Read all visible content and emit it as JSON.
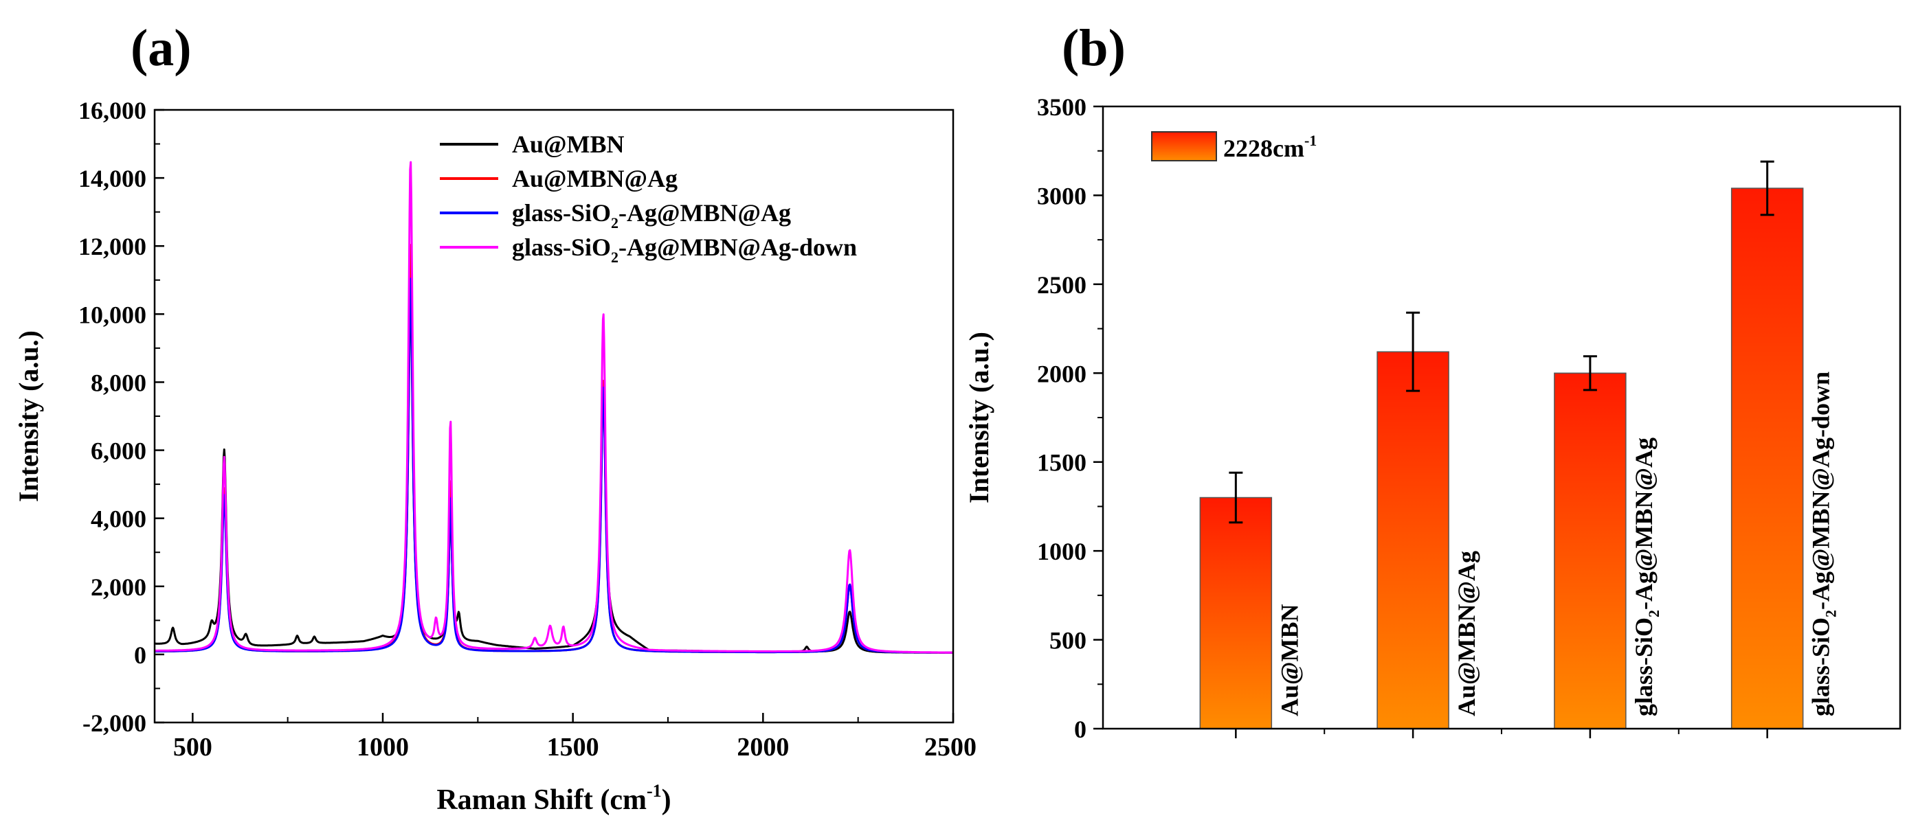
{
  "panels": {
    "a_label": "(a)",
    "b_label": "(b)"
  },
  "chart_data": [
    {
      "id": "a",
      "type": "line",
      "title": "",
      "xlabel": "Raman Shift (cm",
      "xlabel_sup": "-1",
      "xlabel_suffix": ")",
      "ylabel": "Intensity (a.u.)",
      "xlim": [
        400,
        2500
      ],
      "ylim": [
        -2000,
        16000
      ],
      "xticks": [
        500,
        1000,
        1500,
        2000,
        2500
      ],
      "yticks": [
        -2000,
        0,
        2000,
        4000,
        6000,
        8000,
        10000,
        12000,
        14000,
        16000
      ],
      "ytick_labels": [
        "-2,000",
        "0",
        "2,000",
        "4,000",
        "6,000",
        "8,000",
        "10,000",
        "12,000",
        "14,000",
        "16,000"
      ],
      "legend_position": "top-right",
      "series": [
        {
          "name": "Au@MBN",
          "color": "#000000",
          "baseline": [
            [
              400,
              300
            ],
            [
              470,
              250
            ],
            [
              550,
              350
            ],
            [
              650,
              200
            ],
            [
              800,
              300
            ],
            [
              950,
              350
            ],
            [
              1000,
              450
            ],
            [
              1040,
              200
            ],
            [
              1100,
              250
            ],
            [
              1250,
              350
            ],
            [
              1300,
              250
            ],
            [
              1400,
              150
            ],
            [
              1500,
              200
            ],
            [
              1550,
              450
            ],
            [
              1600,
              600
            ],
            [
              1650,
              450
            ],
            [
              1700,
              100
            ],
            [
              1800,
              100
            ],
            [
              1900,
              80
            ],
            [
              2000,
              80
            ],
            [
              2200,
              60
            ],
            [
              2300,
              50
            ],
            [
              2500,
              50
            ]
          ],
          "peaks": [
            [
              448,
              500,
              6
            ],
            [
              550,
              400,
              6
            ],
            [
              583,
              5700,
              7
            ],
            [
              640,
              300,
              6
            ],
            [
              775,
              250,
              5
            ],
            [
              820,
              200,
              5
            ],
            [
              1073,
              10500,
              7
            ],
            [
              1178,
              4000,
              5
            ],
            [
              1200,
              700,
              5
            ],
            [
              1580,
              7400,
              7
            ],
            [
              2115,
              150,
              5
            ],
            [
              2228,
              1200,
              10
            ]
          ]
        },
        {
          "name": "Au@MBN@Ag",
          "color": "#ff0000",
          "baseline": [
            [
              400,
              80
            ],
            [
              900,
              80
            ],
            [
              1500,
              80
            ],
            [
              2000,
              60
            ],
            [
              2500,
              50
            ]
          ],
          "peaks": [
            [
              583,
              4800,
              7
            ],
            [
              1073,
              12000,
              7
            ],
            [
              1178,
              5000,
              5
            ],
            [
              1580,
              8000,
              7
            ],
            [
              2228,
              2000,
              10
            ]
          ]
        },
        {
          "name": "glass-SiO2-Ag@MBN@Ag",
          "color": "#0000ff",
          "name_base": "glass-SiO",
          "name_sub": "2",
          "name_rest": "-Ag@MBN@Ag",
          "baseline": [
            [
              400,
              80
            ],
            [
              900,
              80
            ],
            [
              1500,
              80
            ],
            [
              2000,
              60
            ],
            [
              2500,
              50
            ]
          ],
          "peaks": [
            [
              583,
              4600,
              7
            ],
            [
              1073,
              11000,
              7
            ],
            [
              1178,
              4500,
              5
            ],
            [
              1580,
              7800,
              7
            ],
            [
              2228,
              2000,
              10
            ]
          ]
        },
        {
          "name": "glass-SiO2-Ag@MBN@Ag-down",
          "color": "#ff00ff",
          "name_base": "glass-SiO",
          "name_sub": "2",
          "name_rest": "-Ag@MBN@Ag-down",
          "baseline": [
            [
              400,
              100
            ],
            [
              900,
              100
            ],
            [
              1500,
              150
            ],
            [
              1620,
              200
            ],
            [
              1700,
              100
            ],
            [
              2000,
              80
            ],
            [
              2500,
              50
            ]
          ],
          "peaks": [
            [
              583,
              5700,
              7
            ],
            [
              1073,
              14400,
              7
            ],
            [
              1140,
              700,
              5
            ],
            [
              1178,
              6700,
              5
            ],
            [
              1400,
              300,
              6
            ],
            [
              1440,
              650,
              7
            ],
            [
              1475,
              600,
              5
            ],
            [
              1580,
              9850,
              7
            ],
            [
              2228,
              3000,
              10
            ]
          ]
        }
      ]
    },
    {
      "id": "b",
      "type": "bar",
      "title": "",
      "xlabel": "",
      "ylabel": "Intensity (a.u.)",
      "ylim": [
        0,
        3500
      ],
      "yticks": [
        0,
        500,
        1000,
        1500,
        2000,
        2500,
        3000,
        3500
      ],
      "legend_label": "2228cm",
      "legend_sup": "-1",
      "legend_position": "top-left",
      "bar_color_top": "#ff1a00",
      "bar_color_bottom": "#ff8c00",
      "bars": [
        {
          "label": "Au@MBN",
          "value": 1300,
          "error": 140
        },
        {
          "label": "Au@MBN@Ag",
          "value": 2120,
          "error": 220
        },
        {
          "label": "glass-SiO2-Ag@MBN@Ag",
          "label_base": "glass-SiO",
          "label_sub": "2",
          "label_rest": "-Ag@MBN@Ag",
          "value": 2000,
          "error": 95
        },
        {
          "label": "glass-SiO2-Ag@MBN@Ag-down",
          "label_base": "glass-SiO",
          "label_sub": "2",
          "label_rest": "-Ag@MBN@Ag-down",
          "value": 3040,
          "error": 150
        }
      ]
    }
  ]
}
